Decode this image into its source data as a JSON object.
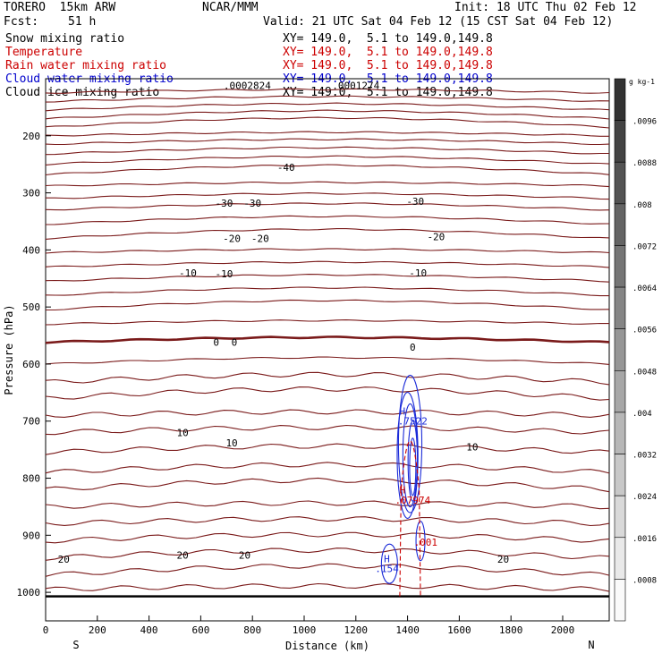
{
  "header": {
    "model": "TORERO  15km ARW",
    "center": "NCAR/MMM",
    "init": "Init: 18 UTC Thu 02 Feb 12",
    "fcst_label": "Fcst:",
    "fcst_value": "51 h",
    "valid": "Valid: 21 UTC Sat 04 Feb 12 (15 CST Sat 04 Feb 12)"
  },
  "legend": [
    {
      "label": "Snow mixing ratio",
      "xy": "XY= 149.0,  5.1 to 149.0,149.8",
      "color": "#000000"
    },
    {
      "label": "Temperature",
      "xy": "XY= 149.0,  5.1 to 149.0,149.8",
      "color": "#cc0000"
    },
    {
      "label": "Rain water mixing ratio",
      "xy": "XY= 149.0,  5.1 to 149.0,149.8",
      "color": "#cc0000"
    },
    {
      "label": "Cloud water mixing ratio",
      "xy": "XY= 149.0,  5.1 to 149.0,149.8",
      "color": "#0000cc"
    },
    {
      "label": "Cloud ice mixing ratio",
      "xy": "XY= 149.0,  5.1 to 149.0,149.8",
      "color": "#000000"
    }
  ],
  "chart_data": {
    "type": "contour-cross-section",
    "xlabel": "Distance (km)",
    "ylabel": "Pressure (hPa)",
    "xlim": [
      0,
      2180
    ],
    "ylim": [
      1050,
      100
    ],
    "x_ticks": [
      "0",
      "200",
      "400",
      "600",
      "800",
      "1000",
      "1200",
      "1400",
      "1600",
      "1800",
      "2000"
    ],
    "y_ticks": [
      "200",
      "300",
      "400",
      "500",
      "600",
      "700",
      "800",
      "900",
      "1000"
    ],
    "x_end_labels": {
      "left": "S",
      "right": "N"
    },
    "colorbar": {
      "unit": "g kg-1",
      "ticks": [
        ".0096",
        ".0088",
        ".008",
        ".0072",
        ".0064",
        ".0056",
        ".0048",
        ".004",
        ".0032",
        ".0024",
        ".0016",
        ".0008"
      ]
    },
    "temperature_contour_labels": [
      {
        "text": "-40",
        "x": 930,
        "p": 255
      },
      {
        "text": "-30",
        "x": 690,
        "p": 318
      },
      {
        "text": "-30",
        "x": 800,
        "p": 318
      },
      {
        "text": "-30",
        "x": 1430,
        "p": 315
      },
      {
        "text": "-20",
        "x": 720,
        "p": 380
      },
      {
        "text": "-20",
        "x": 830,
        "p": 380
      },
      {
        "text": "-20",
        "x": 1510,
        "p": 377
      },
      {
        "text": "-10",
        "x": 550,
        "p": 440
      },
      {
        "text": "-10",
        "x": 690,
        "p": 442
      },
      {
        "text": "-10",
        "x": 1440,
        "p": 440
      },
      {
        "text": "0",
        "x": 660,
        "p": 562
      },
      {
        "text": "0",
        "x": 730,
        "p": 562
      },
      {
        "text": "0",
        "x": 1420,
        "p": 570
      },
      {
        "text": "10",
        "x": 530,
        "p": 720
      },
      {
        "text": "10",
        "x": 720,
        "p": 738
      },
      {
        "text": "10",
        "x": 1650,
        "p": 745
      },
      {
        "text": "20",
        "x": 70,
        "p": 942
      },
      {
        "text": "20",
        "x": 530,
        "p": 935
      },
      {
        "text": "20",
        "x": 770,
        "p": 935
      },
      {
        "text": "20",
        "x": 1770,
        "p": 942
      }
    ],
    "snow_labels": [
      {
        "text": ".0002824",
        "x": 780,
        "p": 112
      },
      {
        "text": ".0001274",
        "x": 1200,
        "p": 112
      }
    ],
    "cloud_water_labels": [
      {
        "text": "H",
        "x": 1380,
        "p": 682
      },
      {
        "text": ".7522",
        "x": 1420,
        "p": 700
      },
      {
        "text": "H",
        "x": 1320,
        "p": 941
      },
      {
        "text": ".154",
        "x": 1320,
        "p": 958
      }
    ],
    "rain_labels": [
      {
        "text": "H",
        "x": 1380,
        "p": 820
      },
      {
        "text": ".07974",
        "x": 1420,
        "p": 838
      },
      {
        "text": ".001",
        "x": 1470,
        "p": 912
      }
    ]
  }
}
